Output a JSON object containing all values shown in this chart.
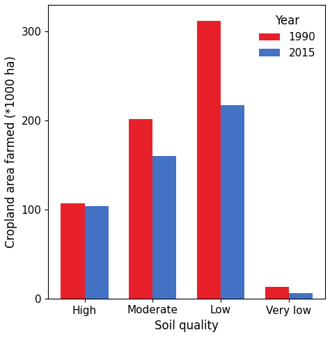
{
  "categories": [
    "High",
    "Moderate",
    "Low",
    "Very low"
  ],
  "values_1990": [
    107,
    202,
    312,
    13
  ],
  "values_2015": [
    104,
    160,
    217,
    6
  ],
  "color_1990": "#e8202a",
  "color_2015": "#4472c4",
  "ylabel": "Cropland area farmed (*1000 ha)",
  "xlabel": "Soil quality",
  "legend_title": "Year",
  "legend_labels": [
    "1990",
    "2015"
  ],
  "ylim": [
    0,
    330
  ],
  "yticks": [
    0,
    100,
    200,
    300
  ],
  "bar_width": 0.35,
  "label_fontsize": 12,
  "tick_fontsize": 11,
  "legend_fontsize": 11,
  "legend_title_fontsize": 12
}
